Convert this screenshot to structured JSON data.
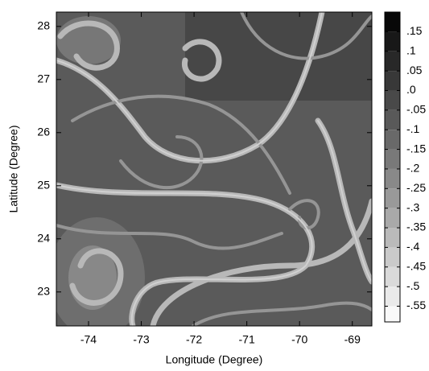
{
  "chart_data": {
    "type": "contour",
    "x_label": "Longitude (Degree)",
    "y_label": "Latitude (Degree)",
    "xlim": [
      -74.61,
      -68.63
    ],
    "xticks": [
      -74,
      -73,
      -72,
      -71,
      -70,
      -69
    ],
    "ylim": [
      22.36,
      28.27
    ],
    "yticks": [
      23,
      24,
      25,
      26,
      27,
      28
    ],
    "clim": [
      -0.59,
      0.2
    ],
    "cticks": [
      {
        "value": 0.15,
        "label": ".15"
      },
      {
        "value": 0.1,
        "label": ".1"
      },
      {
        "value": 0.05,
        "label": ".05"
      },
      {
        "value": 0,
        "label": ".0"
      },
      {
        "value": -0.05,
        "label": "-.05"
      },
      {
        "value": -0.1,
        "label": "-.1"
      },
      {
        "value": -0.15,
        "label": "-.15"
      },
      {
        "value": -0.2,
        "label": "-.2"
      },
      {
        "value": -0.25,
        "label": "-.25"
      },
      {
        "value": -0.3,
        "label": "-.3"
      },
      {
        "value": -0.35,
        "label": "-.35"
      },
      {
        "value": -0.4,
        "label": "-.4"
      },
      {
        "value": -0.45,
        "label": "-.45"
      },
      {
        "value": -0.5,
        "label": "-.5"
      },
      {
        "value": -0.55,
        "label": "-.55"
      }
    ],
    "colormap": "gray"
  }
}
